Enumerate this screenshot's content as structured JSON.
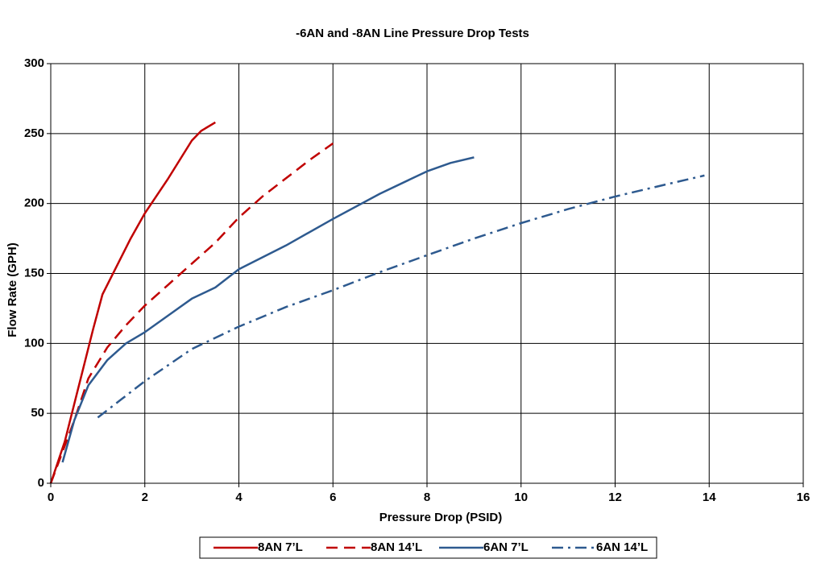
{
  "chart_data": {
    "type": "line",
    "title": "-6AN and -8AN Line Pressure Drop Tests",
    "x_label": "Pressure Drop (PSID)",
    "y_label": "Flow Rate (GPH)",
    "xlim": [
      0,
      16
    ],
    "xticks": [
      0,
      2,
      4,
      6,
      8,
      10,
      12,
      14,
      16
    ],
    "ylim": [
      0,
      300
    ],
    "yticks": [
      0,
      50,
      100,
      150,
      200,
      250,
      300
    ],
    "grid": true,
    "legend": "bottom",
    "series": [
      {
        "name": "8AN 7’L",
        "color": "#c00000",
        "dash": "solid",
        "x": [
          0,
          0.3,
          0.6,
          0.9,
          1.1,
          1.4,
          1.7,
          2,
          2.5,
          3,
          3.2,
          3.5
        ],
        "values": [
          0,
          30,
          70,
          110,
          135,
          155,
          175,
          193,
          218,
          245,
          252,
          258
        ]
      },
      {
        "name": "8AN 14’L",
        "color": "#c00000",
        "dash": "dashed",
        "x": [
          0,
          0.5,
          0.8,
          1.2,
          1.6,
          2,
          2.5,
          3,
          3.5,
          4,
          4.5,
          5,
          5.5,
          6
        ],
        "values": [
          0,
          45,
          75,
          97,
          113,
          127,
          142,
          157,
          172,
          190,
          205,
          218,
          231,
          243
        ]
      },
      {
        "name": "6AN 7’L",
        "color": "#2e5a8f",
        "dash": "solid",
        "x": [
          0.25,
          0.5,
          0.8,
          1.2,
          1.6,
          2,
          2.5,
          3,
          3.5,
          4,
          5,
          6,
          7,
          8,
          8.5,
          9
        ],
        "values": [
          15,
          45,
          70,
          88,
          100,
          108,
          120,
          132,
          140,
          153,
          170,
          189,
          207,
          223,
          229,
          233
        ]
      },
      {
        "name": "6AN 14’L",
        "color": "#2e5a8f",
        "dash": "dashdot",
        "x": [
          1,
          1.5,
          2,
          3,
          4,
          5,
          6,
          7,
          8,
          9,
          10,
          11,
          12,
          13,
          13.9
        ],
        "values": [
          47,
          60,
          73,
          96,
          112,
          126,
          138,
          151,
          163,
          175,
          186,
          196,
          205,
          213,
          220
        ]
      }
    ]
  }
}
